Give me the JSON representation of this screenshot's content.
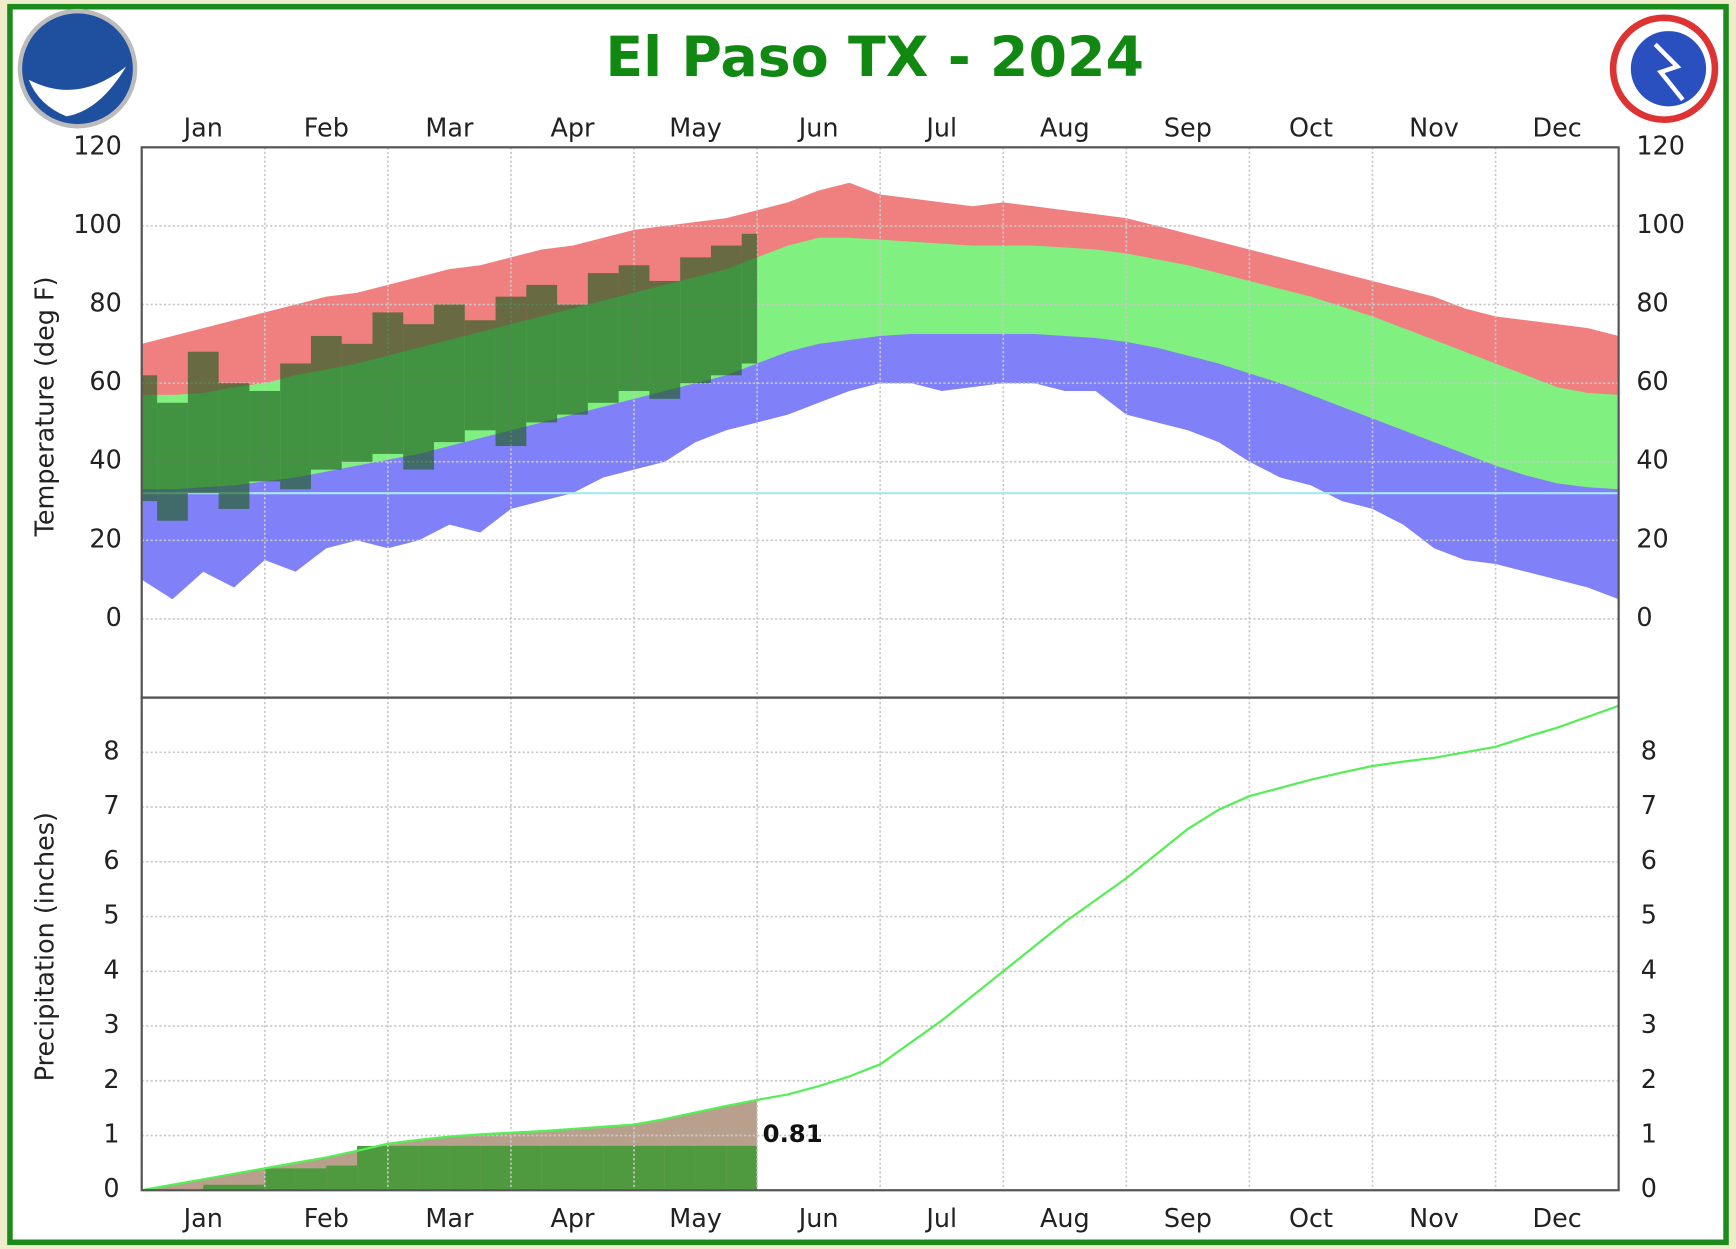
{
  "chart_data": [
    {
      "type": "range",
      "title": "El Paso TX - 2024",
      "ylabel": "Temperature (deg F)",
      "x": [
        0,
        0.25,
        0.5,
        0.75,
        1,
        1.25,
        1.5,
        1.75,
        2,
        2.25,
        2.5,
        2.75,
        3,
        3.25,
        3.5,
        3.75,
        4,
        4.25,
        4.5,
        4.75,
        5,
        5.25,
        5.5,
        5.75,
        6,
        6.25,
        6.5,
        6.75,
        7,
        7.25,
        7.5,
        7.75,
        8,
        8.25,
        8.5,
        8.75,
        9,
        9.25,
        9.5,
        9.75,
        10,
        10.25,
        10.5,
        10.75,
        11,
        11.25,
        11.5,
        11.75,
        12
      ],
      "xlim": [
        0,
        12
      ],
      "xticks": [
        {
          "value": 0,
          "label": "Jan"
        },
        {
          "value": 1,
          "label": "Feb"
        },
        {
          "value": 2,
          "label": "Mar"
        },
        {
          "value": 3,
          "label": "Apr"
        },
        {
          "value": 4,
          "label": "May"
        },
        {
          "value": 5,
          "label": "Jun"
        },
        {
          "value": 6,
          "label": "Jul"
        },
        {
          "value": 7,
          "label": "Aug"
        },
        {
          "value": 8,
          "label": "Sep"
        },
        {
          "value": 9,
          "label": "Oct"
        },
        {
          "value": 10,
          "label": "Nov"
        },
        {
          "value": 11,
          "label": "Dec"
        }
      ],
      "ylim": [
        -20,
        120
      ],
      "yticks": [
        0,
        20,
        40,
        60,
        80,
        100,
        120
      ],
      "grid": true,
      "reference_line": {
        "value": 32,
        "color": "#a8e8f0"
      },
      "record_high": {
        "color": "#f08080",
        "values": [
          70,
          72,
          74,
          76,
          78,
          80,
          82,
          83,
          85,
          87,
          89,
          90,
          92,
          94,
          95,
          97,
          99,
          100,
          101,
          102,
          104,
          106,
          109,
          111,
          108,
          107,
          106,
          105,
          106,
          105,
          104,
          103,
          102,
          100,
          98,
          96,
          94,
          92,
          90,
          88,
          86,
          84,
          82,
          79,
          77,
          76,
          75,
          74,
          72
        ]
      },
      "normal_high": {
        "color": "#80f080",
        "values": [
          57,
          57,
          57.5,
          59,
          60,
          62,
          63.5,
          65,
          67,
          69,
          71,
          73,
          75,
          77,
          79,
          81,
          83,
          85,
          87,
          89,
          92,
          95,
          97,
          97,
          96.5,
          96,
          95.5,
          95,
          95,
          95,
          94.5,
          94,
          93,
          91.5,
          90,
          88,
          86,
          84,
          82,
          79.5,
          77,
          74,
          71,
          68,
          65,
          62,
          59,
          57.5,
          57
        ]
      },
      "normal_low": {
        "color": "#8080f8",
        "values": [
          33,
          33,
          33.5,
          34,
          35,
          36,
          37.5,
          39,
          40.5,
          42,
          44,
          46,
          48,
          50,
          52,
          54,
          56,
          58,
          60,
          62,
          65,
          68,
          70,
          71,
          72,
          72.5,
          72.5,
          72.5,
          72.5,
          72.5,
          72,
          71.5,
          70.5,
          69,
          67,
          65,
          62.5,
          60,
          57,
          54,
          51,
          48,
          45,
          42,
          39,
          36.5,
          34.5,
          33.5,
          33
        ]
      },
      "record_low": {
        "color": "#ffffff",
        "values": [
          10,
          5,
          12,
          8,
          15,
          12,
          18,
          20,
          18,
          20,
          24,
          22,
          28,
          30,
          32,
          36,
          38,
          40,
          45,
          48,
          50,
          52,
          55,
          58,
          60,
          60,
          58,
          59,
          60,
          60,
          58,
          58,
          52,
          50,
          48,
          45,
          40,
          36,
          34,
          30,
          28,
          24,
          18,
          15,
          14,
          12,
          10,
          8,
          5
        ]
      },
      "observed_high": {
        "color": "#1f5f1f",
        "values": [
          62,
          55,
          68,
          60,
          58,
          65,
          72,
          70,
          78,
          75,
          80,
          76,
          82,
          85,
          80,
          88,
          90,
          86,
          92,
          95,
          98,
          null,
          null,
          null,
          null,
          null,
          null,
          null,
          null,
          null,
          null,
          null,
          null,
          null,
          null,
          null,
          null,
          null,
          null,
          null,
          null,
          null,
          null,
          null,
          null,
          null,
          null,
          null,
          null
        ]
      },
      "observed_low": {
        "values": [
          30,
          25,
          32,
          28,
          35,
          33,
          38,
          40,
          42,
          38,
          45,
          48,
          44,
          50,
          52,
          55,
          58,
          56,
          60,
          62,
          65,
          null,
          null,
          null,
          null,
          null,
          null,
          null,
          null,
          null,
          null,
          null,
          null,
          null,
          null,
          null,
          null,
          null,
          null,
          null,
          null,
          null,
          null,
          null,
          null,
          null,
          null,
          null,
          null
        ]
      }
    },
    {
      "type": "area",
      "ylabel": "Precipitation (inches)",
      "x": [
        0,
        0.25,
        0.5,
        0.75,
        1,
        1.25,
        1.5,
        1.75,
        2,
        2.25,
        2.5,
        2.75,
        3,
        3.25,
        3.5,
        3.75,
        4,
        4.25,
        4.5,
        4.75,
        5,
        5.25,
        5.5,
        5.75,
        6,
        6.25,
        6.5,
        6.75,
        7,
        7.25,
        7.5,
        7.75,
        8,
        8.25,
        8.5,
        8.75,
        9,
        9.25,
        9.5,
        9.75,
        10,
        10.25,
        10.5,
        10.75,
        11,
        11.25,
        11.5,
        11.75,
        12
      ],
      "xlim": [
        0,
        12
      ],
      "xticks": [
        {
          "value": 0,
          "label": "Jan"
        },
        {
          "value": 1,
          "label": "Feb"
        },
        {
          "value": 2,
          "label": "Mar"
        },
        {
          "value": 3,
          "label": "Apr"
        },
        {
          "value": 4,
          "label": "May"
        },
        {
          "value": 5,
          "label": "Jun"
        },
        {
          "value": 6,
          "label": "Jul"
        },
        {
          "value": 7,
          "label": "Aug"
        },
        {
          "value": 8,
          "label": "Sep"
        },
        {
          "value": 9,
          "label": "Oct"
        },
        {
          "value": 10,
          "label": "Nov"
        },
        {
          "value": 11,
          "label": "Dec"
        }
      ],
      "ylim": [
        0,
        9
      ],
      "yticks": [
        0,
        1,
        2,
        3,
        4,
        5,
        6,
        7,
        8
      ],
      "grid": true,
      "series": [
        {
          "color": "#55ee55",
          "fill": "#b8a08c",
          "values": [
            0,
            0.1,
            0.2,
            0.3,
            0.4,
            0.5,
            0.6,
            0.72,
            0.85,
            0.92,
            0.98,
            1.02,
            1.05,
            1.08,
            1.12,
            1.16,
            1.2,
            1.3,
            1.42,
            1.54,
            1.65,
            1.75,
            1.9,
            2.08,
            2.3,
            2.7,
            3.1,
            3.55,
            4.0,
            4.45,
            4.9,
            5.3,
            5.7,
            6.15,
            6.6,
            6.95,
            7.2,
            7.35,
            7.5,
            7.63,
            7.75,
            7.83,
            7.9,
            8.0,
            8.1,
            8.28,
            8.45,
            8.65,
            8.85
          ]
        },
        {
          "color": "#4f9a3f",
          "values": [
            0,
            0,
            0,
            0.1,
            0.1,
            0.4,
            0.4,
            0.45,
            0.81,
            0.81,
            0.81,
            0.81,
            0.81,
            0.81,
            0.81,
            0.81,
            0.81,
            0.81,
            0.81,
            0.81,
            0.81,
            null,
            null,
            null,
            null,
            null,
            null,
            null,
            null,
            null,
            null,
            null,
            null,
            null,
            null,
            null,
            null,
            null,
            null,
            null,
            null,
            null,
            null,
            null,
            null,
            null,
            null,
            null,
            null
          ]
        }
      ]
    }
  ]
}
